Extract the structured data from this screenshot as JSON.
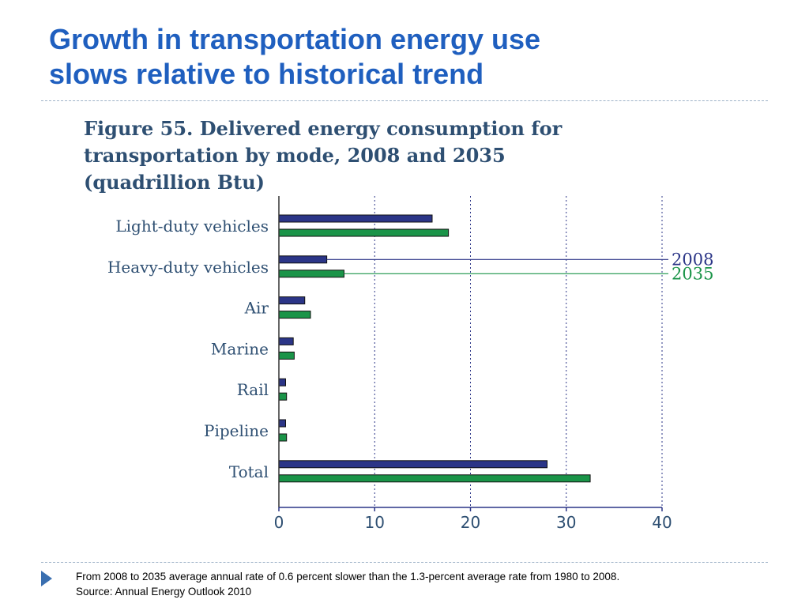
{
  "slide": {
    "title_lines": [
      "Growth in transportation energy use",
      "slows relative to historical trend"
    ],
    "notes": [
      "From 2008 to 2035 average annual rate of 0.6 percent slower than the 1.3-percent average rate from 1980 to 2008.",
      "Source: Annual Energy Outlook 2010"
    ]
  },
  "colors": {
    "title": "#1f5fbf",
    "text": "#2e4f72",
    "series_2008": "#2b3587",
    "series_2035": "#1a9448"
  },
  "chart_data": {
    "type": "bar",
    "orientation": "horizontal",
    "title_lines": [
      "Figure 55. Delivered energy consumption for",
      "transportation by mode, 2008 and 2035",
      "(quadrillion Btu)"
    ],
    "categories": [
      "Light-duty vehicles",
      "Heavy-duty vehicles",
      "Air",
      "Marine",
      "Rail",
      "Pipeline",
      "Total"
    ],
    "series": [
      {
        "name": "2008",
        "values": [
          16.0,
          5.0,
          2.7,
          1.5,
          0.7,
          0.7,
          28.0
        ]
      },
      {
        "name": "2035",
        "values": [
          17.7,
          6.8,
          3.3,
          1.6,
          0.8,
          0.8,
          32.5
        ]
      }
    ],
    "xlim": [
      0,
      40
    ],
    "xticks": [
      "0",
      "10",
      "20",
      "30",
      "40"
    ],
    "grid": "vertical dotted",
    "legend": "right, attached to Heavy-duty vehicles bars"
  }
}
